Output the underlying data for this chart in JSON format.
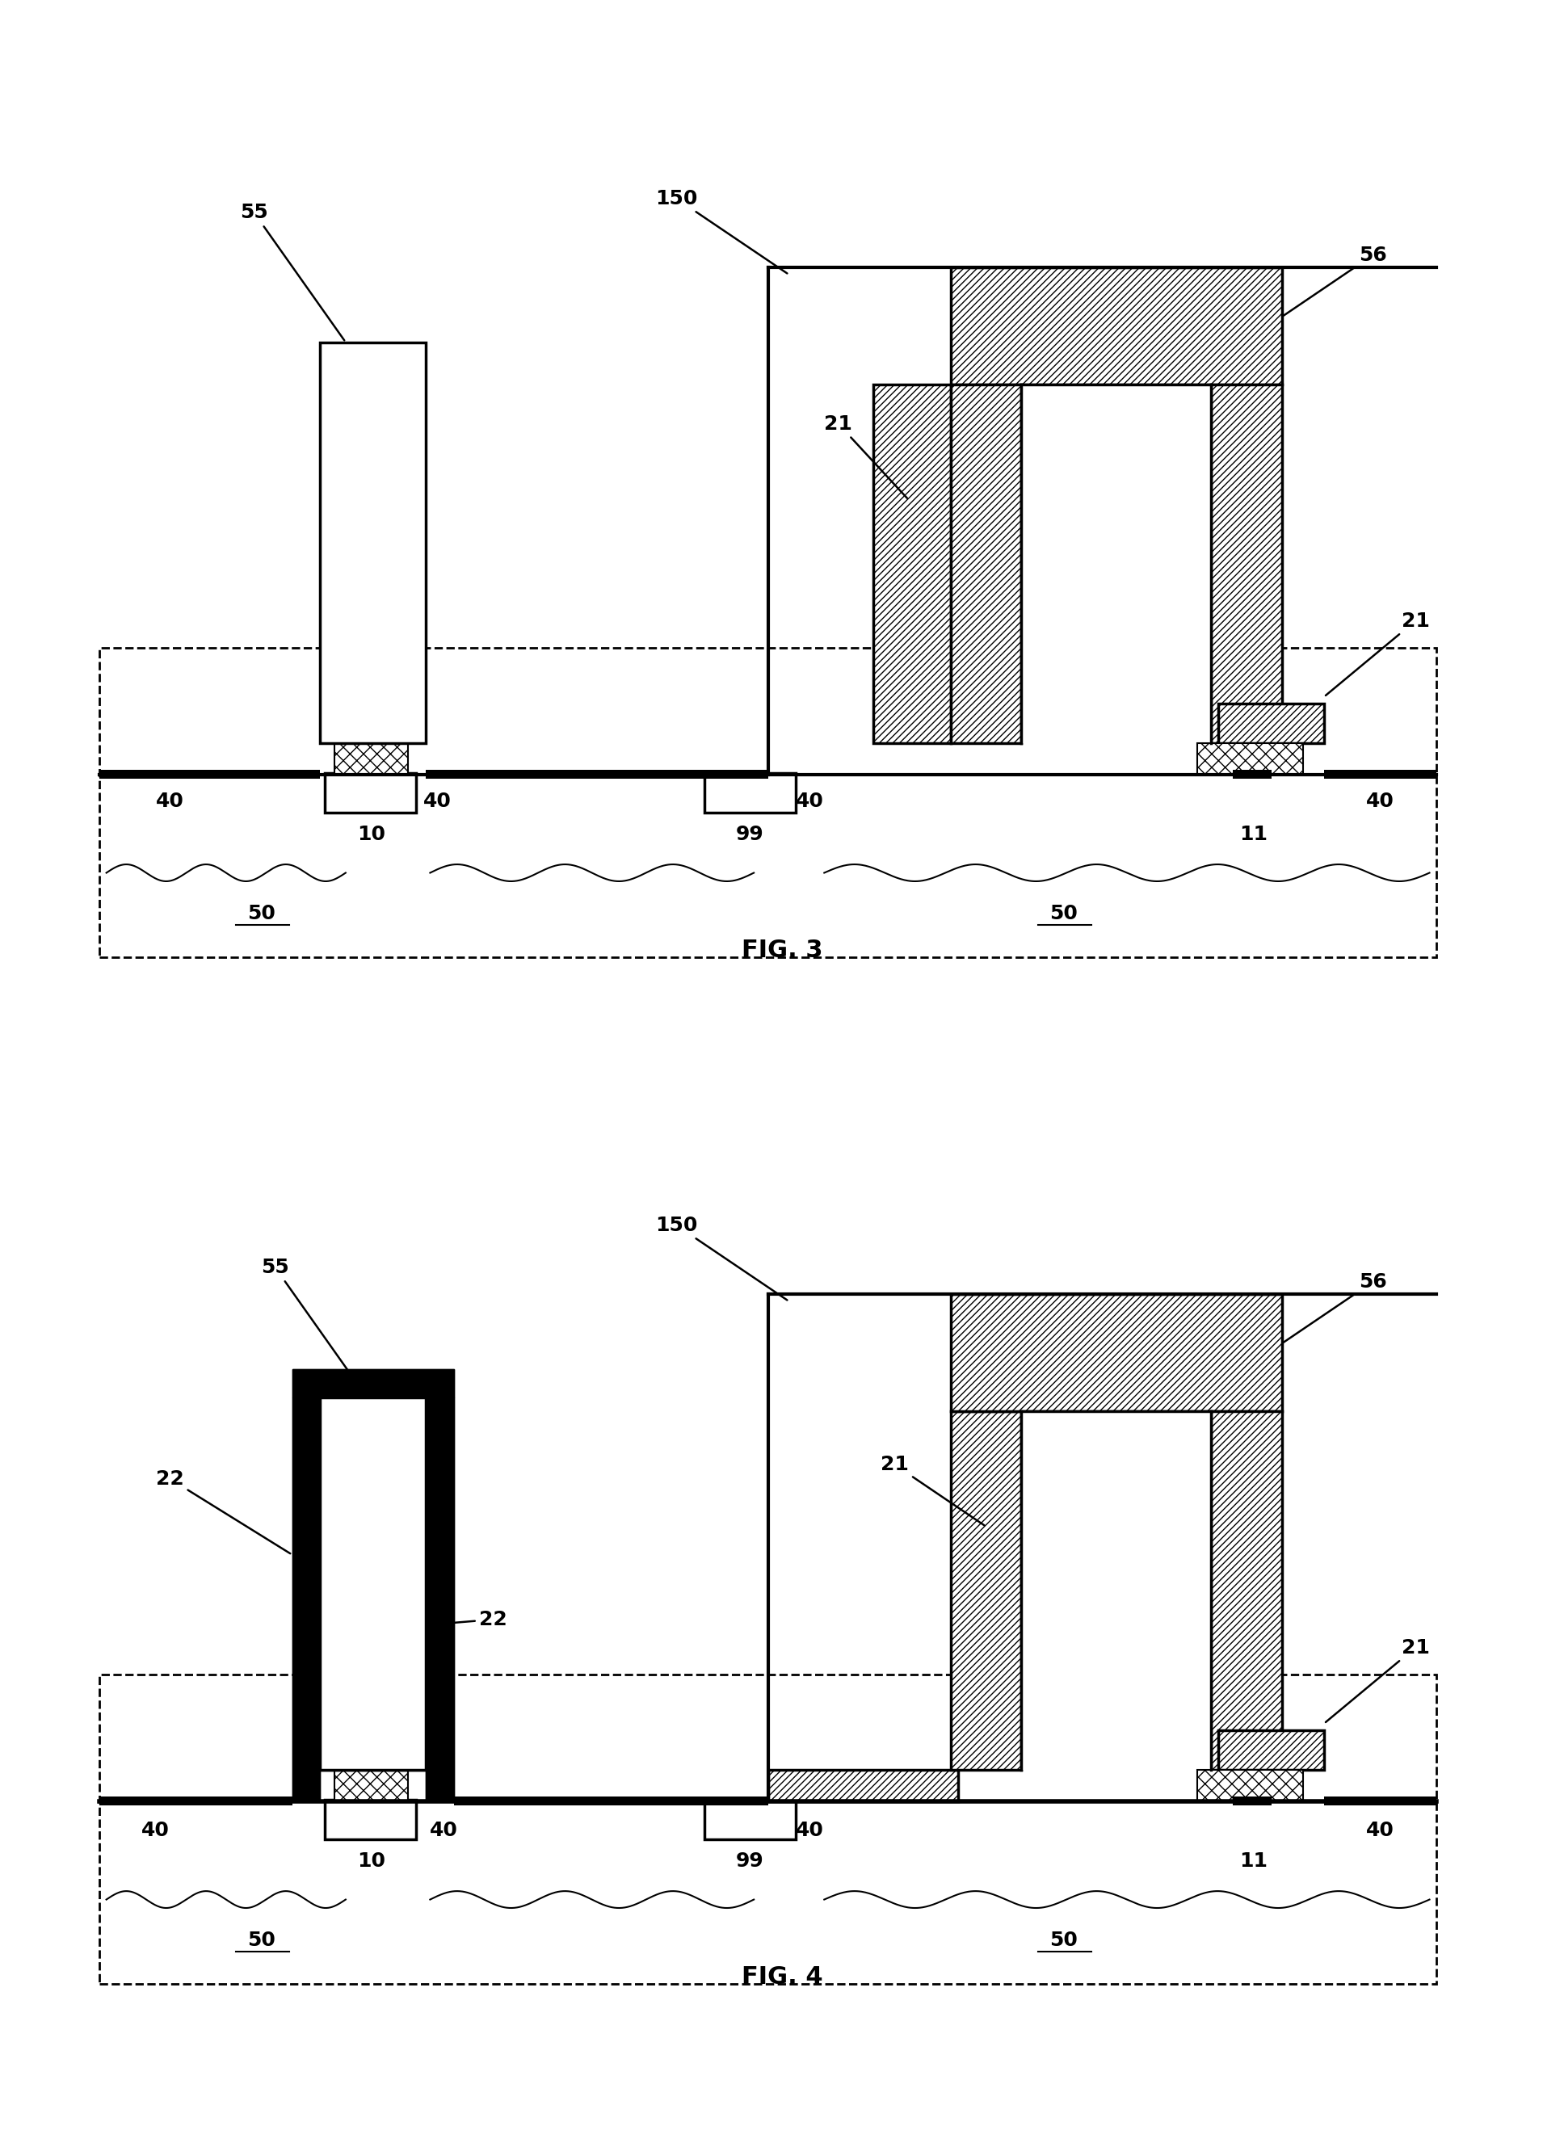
{
  "fig_width": 19.36,
  "fig_height": 26.48,
  "bg_color": "#ffffff",
  "fig3_label": "FIG. 3",
  "fig4_label": "FIG. 4",
  "lw_main": 2.5,
  "lw_thin": 1.5,
  "fs_label": 18,
  "fs_fig": 20
}
